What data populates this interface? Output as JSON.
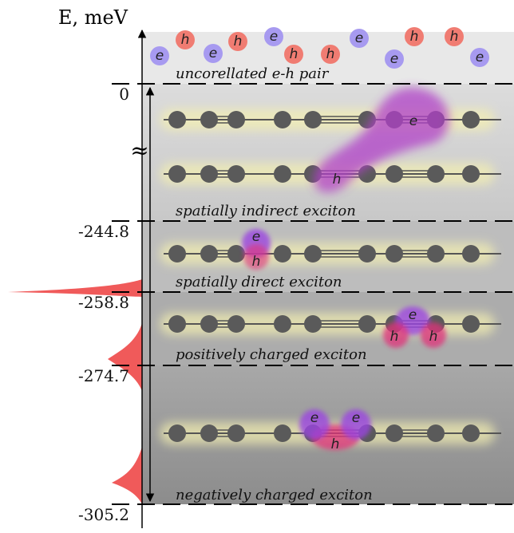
{
  "axis": {
    "label": "E, meV",
    "break": "≈",
    "levels": [
      "0",
      "-244.8",
      "-258.8",
      "-274.7",
      "-305.2"
    ]
  },
  "free_carriers": [
    "e",
    "h",
    "e",
    "h",
    "e",
    "h",
    "h",
    "e",
    "e",
    "h",
    "h",
    "e"
  ],
  "states": [
    {
      "label": "uncorellated e-h pair"
    },
    {
      "label": "spatially indirect exciton",
      "carriers": [
        "e",
        "h"
      ]
    },
    {
      "label": "spatially direct exciton",
      "carriers": [
        "e",
        "h"
      ]
    },
    {
      "label": "positively charged exciton",
      "carriers": [
        "e",
        "h",
        "h"
      ]
    },
    {
      "label": "negatively charged exciton",
      "carriers": [
        "e",
        "e",
        "h"
      ]
    }
  ]
}
